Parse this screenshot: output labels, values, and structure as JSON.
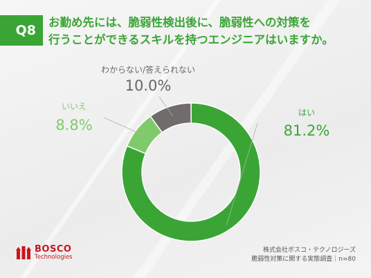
{
  "question": {
    "badge": "Q8",
    "line1": "お勤め先には、脆弱性検出後に、脆弱性への対策を",
    "line2": "行うことができるスキルを持つエンジニアはいますか。"
  },
  "chart_data": {
    "type": "pie",
    "donut": true,
    "slices": [
      {
        "label": "はい",
        "value": 81.2,
        "value_text": "81.2%",
        "color": "#3aa535"
      },
      {
        "label": "いいえ",
        "value": 8.8,
        "value_text": "8.8%",
        "color": "#7fcb6b"
      },
      {
        "label": "わからない/答えられない",
        "value": 10.0,
        "value_text": "10.0%",
        "color": "#706c6b"
      }
    ]
  },
  "logo": {
    "name": "BOSCO",
    "sub": "Technologies"
  },
  "footer": {
    "company": "株式会社ボスコ・テクノロジーズ",
    "survey": "脆弱性対策に関する実態調査｜n=80"
  }
}
